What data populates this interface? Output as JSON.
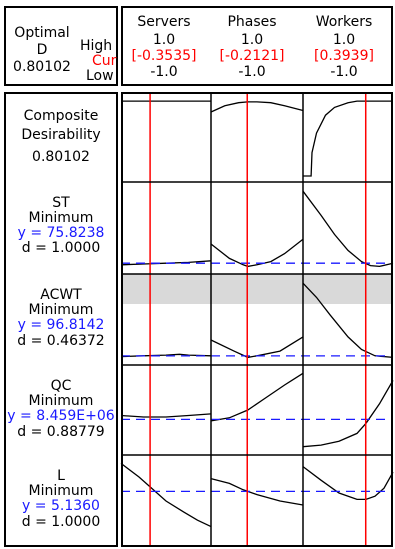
{
  "header": {
    "optimal_label": "Optimal",
    "d_label": "D",
    "d_value": "0.80102",
    "high_label": "High",
    "cur_label": "Cur",
    "low_label": "Low"
  },
  "factors": [
    {
      "name": "Servers",
      "high": "1.0",
      "cur": "[-0.3535]",
      "low": "-1.0",
      "cur_value": -0.3535
    },
    {
      "name": "Phases",
      "high": "1.0",
      "cur": "[-0.2121]",
      "low": "-1.0",
      "cur_value": -0.2121
    },
    {
      "name": "Workers",
      "high": "1.0",
      "cur": "[0.3939]",
      "low": "-1.0",
      "cur_value": 0.3939
    }
  ],
  "responses": [
    {
      "line1": "Composite",
      "line2": "Desirability",
      "line3": "0.80102",
      "line4": ""
    },
    {
      "line1": "ST",
      "line2": "Minimum",
      "line3": "y = 75.8238",
      "line4": "d = 1.0000"
    },
    {
      "line1": "ACWT",
      "line2": "Minimum",
      "line3": "y = 96.8142",
      "line4": "d = 0.46372"
    },
    {
      "line1": "QC",
      "line2": "Minimum",
      "line3": "y = 8.459E+06",
      "line4": "d = 0.88779"
    },
    {
      "line1": "L",
      "line2": "Minimum",
      "line3": "y = 5.1360",
      "line4": "d = 1.0000"
    }
  ],
  "colors": {
    "current_line": "#ff0000",
    "reference_line": "#1a1aff",
    "curve": "#000000",
    "shade": "#d9d9d9"
  },
  "chart_data": {
    "type": "line",
    "title": "",
    "x_range": [
      -1.0,
      1.0
    ],
    "factors": [
      "Servers",
      "Phases",
      "Workers"
    ],
    "current_settings": [
      -0.3535,
      -0.2121,
      0.3939
    ],
    "panels": [
      {
        "response": "Composite Desirability",
        "y_range": [
          0,
          1
        ],
        "shaded": false,
        "reference": null,
        "curves": [
          {
            "x": [
              -1,
              -0.5,
              0,
              0.5,
              1
            ],
            "y": [
              0.96,
              0.96,
              0.96,
              0.96,
              0.96
            ]
          },
          {
            "x": [
              -1,
              -0.7,
              -0.4,
              -0.2,
              0,
              0.3,
              0.6,
              1
            ],
            "y": [
              0.82,
              0.9,
              0.94,
              0.95,
              0.95,
              0.94,
              0.9,
              0.84
            ]
          },
          {
            "x": [
              -1,
              -0.82,
              -0.8,
              -0.7,
              -0.5,
              -0.3,
              0,
              0.2,
              0.4,
              0.7,
              1
            ],
            "y": [
              0.0,
              0.0,
              0.3,
              0.55,
              0.78,
              0.88,
              0.94,
              0.96,
              0.96,
              0.96,
              0.96
            ]
          }
        ]
      },
      {
        "response": "ST",
        "y_range": [
          0,
          1
        ],
        "shaded": false,
        "reference": 0.06,
        "curves": [
          {
            "x": [
              -1,
              -0.5,
              0,
              0.5,
              1
            ],
            "y": [
              0.04,
              0.05,
              0.06,
              0.07,
              0.09
            ]
          },
          {
            "x": [
              -1,
              -0.6,
              -0.3,
              -0.2,
              0,
              0.3,
              0.6,
              1
            ],
            "y": [
              0.3,
              0.12,
              0.04,
              0.02,
              0.04,
              0.08,
              0.18,
              0.36
            ]
          },
          {
            "x": [
              -1,
              -0.6,
              -0.3,
              0,
              0.3,
              0.5,
              0.7,
              1
            ],
            "y": [
              0.96,
              0.66,
              0.42,
              0.22,
              0.08,
              0.03,
              0.02,
              0.06
            ]
          }
        ]
      },
      {
        "response": "ACWT",
        "y_range": [
          0,
          1
        ],
        "shaded": true,
        "reference": 0.04,
        "curves": [
          {
            "x": [
              -1,
              -0.5,
              0,
              0.3,
              0.5,
              1
            ],
            "y": [
              0.03,
              0.04,
              0.05,
              0.06,
              0.05,
              0.04
            ]
          },
          {
            "x": [
              -1,
              -0.5,
              -0.2,
              0,
              0.5,
              1
            ],
            "y": [
              0.24,
              0.1,
              0.02,
              0.04,
              0.1,
              0.28
            ]
          },
          {
            "x": [
              -1,
              -0.7,
              -0.4,
              0,
              0.3,
              0.6,
              1
            ],
            "y": [
              0.96,
              0.78,
              0.56,
              0.28,
              0.12,
              0.04,
              0.02
            ]
          }
        ]
      },
      {
        "response": "QC",
        "y_range": [
          0,
          1
        ],
        "shaded": false,
        "reference": 0.38,
        "curves": [
          {
            "x": [
              -1,
              -0.5,
              0,
              0.5,
              1
            ],
            "y": [
              0.43,
              0.41,
              0.41,
              0.43,
              0.45
            ]
          },
          {
            "x": [
              -1,
              -0.6,
              -0.2,
              0.2,
              0.6,
              1
            ],
            "y": [
              0.36,
              0.4,
              0.5,
              0.66,
              0.82,
              0.97
            ]
          },
          {
            "x": [
              -1,
              -0.6,
              -0.2,
              0.2,
              0.4,
              0.7,
              1
            ],
            "y": [
              0.03,
              0.05,
              0.1,
              0.2,
              0.33,
              0.58,
              0.88
            ]
          }
        ]
      },
      {
        "response": "L",
        "y_range": [
          0,
          1
        ],
        "shaded": false,
        "reference": 0.62,
        "curves": [
          {
            "x": [
              -1,
              -0.6,
              -0.3,
              0,
              0.4,
              0.7,
              1
            ],
            "y": [
              0.97,
              0.8,
              0.65,
              0.5,
              0.36,
              0.26,
              0.18
            ]
          },
          {
            "x": [
              -1,
              -0.6,
              -0.3,
              0,
              0.5,
              1
            ],
            "y": [
              0.78,
              0.72,
              0.64,
              0.58,
              0.5,
              0.45
            ]
          },
          {
            "x": [
              -1,
              -0.6,
              -0.2,
              0.2,
              0.4,
              0.6,
              0.8,
              1
            ],
            "y": [
              0.93,
              0.76,
              0.6,
              0.52,
              0.52,
              0.56,
              0.66,
              0.86
            ]
          }
        ]
      }
    ]
  }
}
